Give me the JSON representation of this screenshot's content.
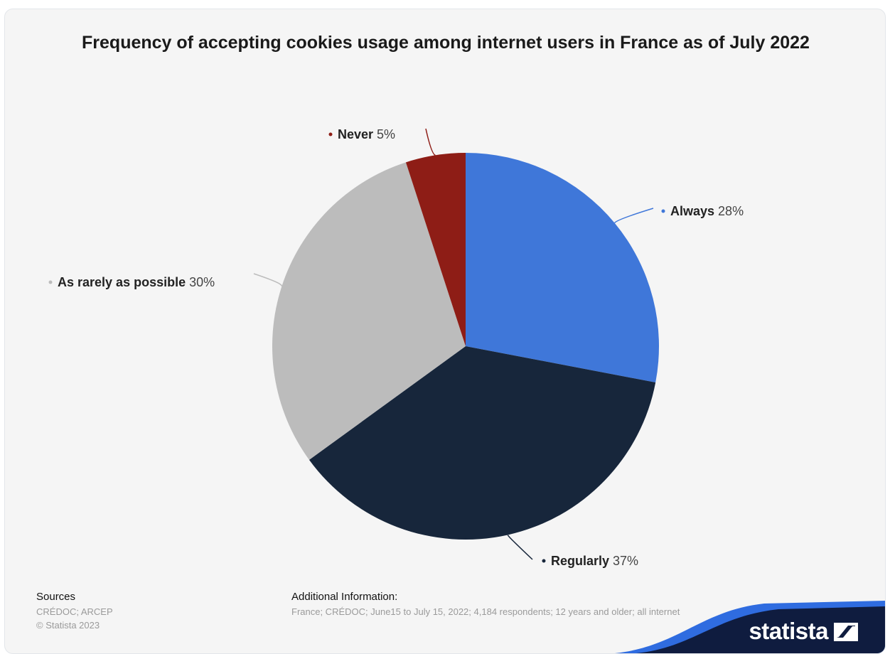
{
  "chart_data": {
    "type": "pie",
    "title": "Frequency of accepting cookies usage among internet users in France as of July 2022",
    "slices": [
      {
        "name": "Always",
        "value": 28,
        "color": "#3f77d9"
      },
      {
        "name": "Regularly",
        "value": 37,
        "color": "#17263b"
      },
      {
        "name": "As rarely as possible",
        "value": 30,
        "color": "#bcbcbc"
      },
      {
        "name": "Never",
        "value": 5,
        "color": "#8e1d16"
      }
    ],
    "value_suffix": "%",
    "start_angle_deg": 0,
    "direction": "clockwise"
  },
  "footer": {
    "sources_heading": "Sources",
    "sources_line1": "CRÉDOC; ARCEP",
    "sources_line2": "© Statista 2023",
    "additional_heading": "Additional Information:",
    "additional_text": "France; CRÉDOC; June15 to July 15, 2022; 4,184 respondents; 12 years and older; all internet"
  },
  "brand": {
    "name": "statista",
    "accent": "#0f1c3f",
    "wave_color": "#2f6ce0"
  }
}
